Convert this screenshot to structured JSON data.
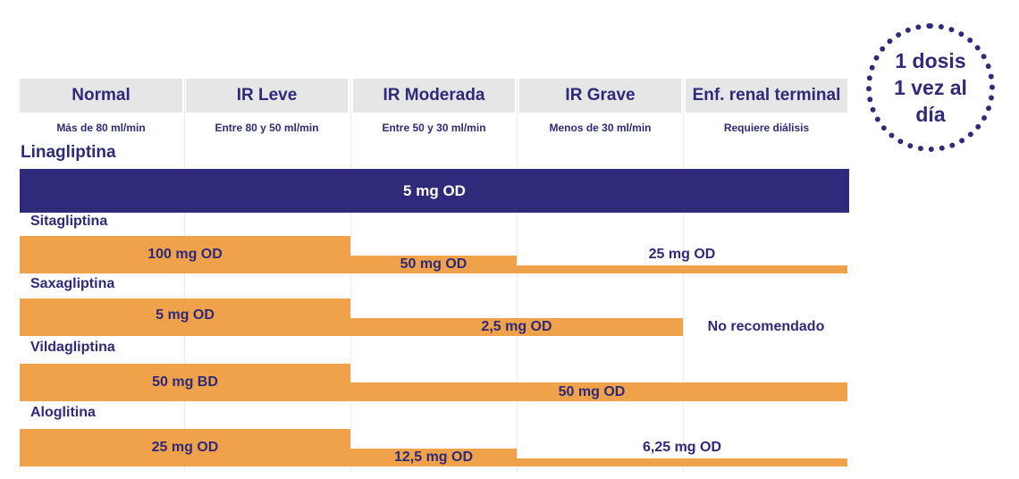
{
  "headers": [
    {
      "title": "Normal",
      "subtitle": "Más de 80 ml/min"
    },
    {
      "title": "IR Leve",
      "subtitle": "Entre 80 y 50 ml/min"
    },
    {
      "title": "IR Moderada",
      "subtitle": "Entre 50 y 30 ml/min"
    },
    {
      "title": "IR Grave",
      "subtitle": "Menos de 30 ml/min"
    },
    {
      "title": "Enf. renal terminal",
      "subtitle": "Requiere diálisis"
    }
  ],
  "badge": {
    "line1": "1 dosis",
    "line2": "1 vez al",
    "line3": "día"
  },
  "drugs": {
    "linagliptina": {
      "name": "Linagliptina",
      "dose_all": "5 mg OD"
    },
    "sitagliptina": {
      "name": "Sitagliptina",
      "dose_normal_leve": "100 mg OD",
      "dose_moderada": "50 mg OD",
      "dose_grave_terminal": "25 mg OD"
    },
    "saxagliptina": {
      "name": "Saxagliptina",
      "dose_normal_leve": "5 mg OD",
      "dose_moderada_grave": "2,5 mg OD",
      "dose_terminal": "No recomendado"
    },
    "vildagliptina": {
      "name": "Vildagliptina",
      "dose_normal_leve": "50 mg BD",
      "dose_moderada_terminal": "50 mg OD"
    },
    "aloglitina": {
      "name": "Aloglitina",
      "dose_normal_leve": "25 mg OD",
      "dose_moderada": "12,5 mg OD",
      "dose_grave_terminal": "6,25 mg OD"
    }
  },
  "colors": {
    "primary": "#302a7b",
    "bar": "#f0a24a",
    "header_bg": "#e6e6e6"
  }
}
